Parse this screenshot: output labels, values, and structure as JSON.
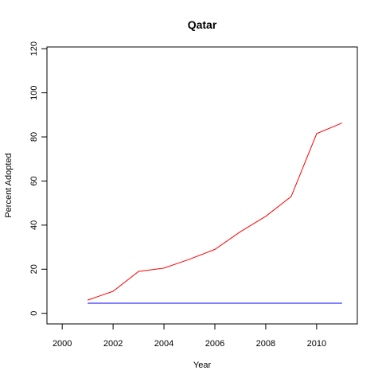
{
  "chart_data": {
    "type": "line",
    "title": "Qatar",
    "xlabel": "Year",
    "ylabel": "Percent Adopted",
    "xlim": [
      1999.4,
      2011.6
    ],
    "ylim": [
      -4.8,
      120.8
    ],
    "xticks": [
      2000,
      2002,
      2004,
      2006,
      2008,
      2010
    ],
    "yticks": [
      0,
      20,
      40,
      60,
      80,
      100,
      120
    ],
    "grid": false,
    "series": [
      {
        "color": "#ff0000",
        "x": [
          2001,
          2002,
          2003,
          2004,
          2005,
          2006,
          2007,
          2008,
          2009,
          2010,
          2011
        ],
        "y": [
          6,
          10,
          19,
          20.5,
          24.5,
          29,
          37,
          44,
          53,
          81.5,
          86.3
        ]
      },
      {
        "color": "#0000ff",
        "x": [
          2001,
          2002,
          2003,
          2004,
          2005,
          2006,
          2007,
          2008,
          2009,
          2010,
          2011
        ],
        "y": [
          4.6,
          4.6,
          4.6,
          4.6,
          4.6,
          4.6,
          4.6,
          4.6,
          4.6,
          4.6,
          4.6
        ]
      }
    ]
  }
}
